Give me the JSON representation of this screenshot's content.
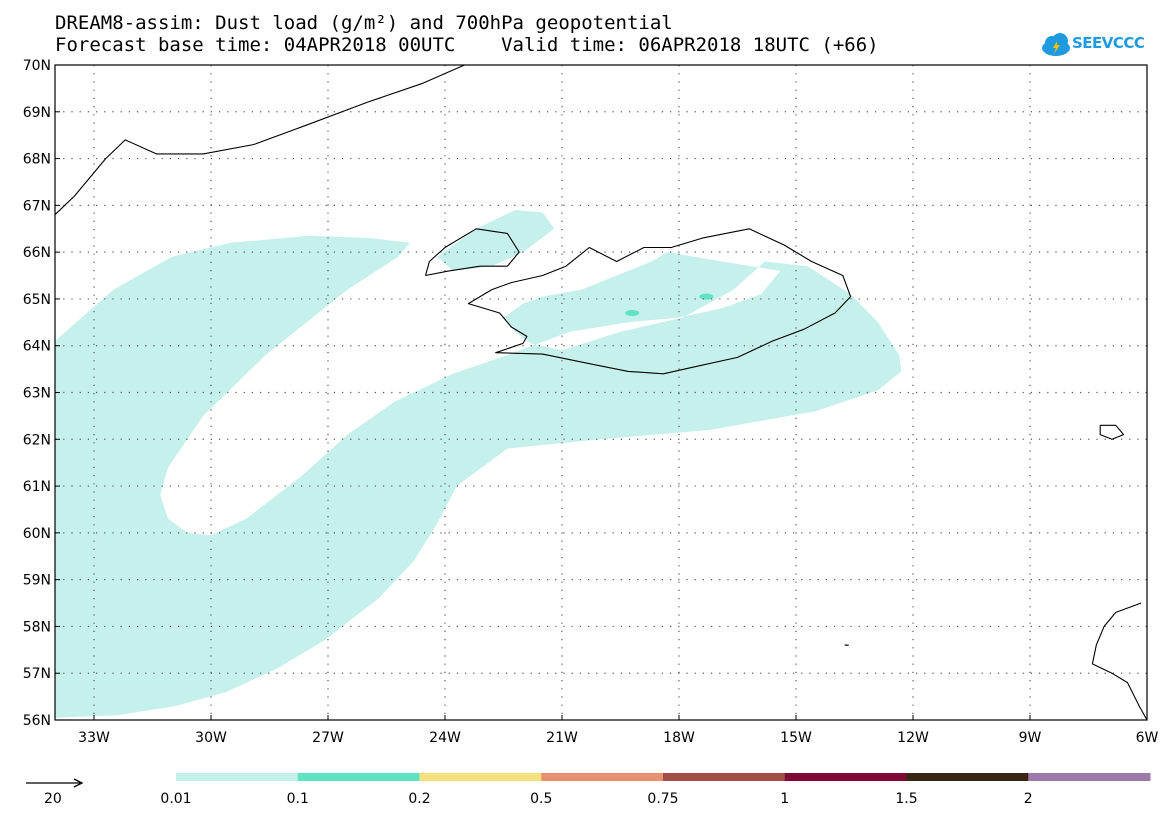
{
  "header": {
    "title_line1": "DREAM8-assim: Dust load (g/m²) and 700hPa geopotential",
    "title_line2": "Forecast base time: 04APR2018 00UTC    Valid time: 06APR2018 18UTC (+66)"
  },
  "logo": {
    "text": "SEEVCCC",
    "color": "#1e9be0"
  },
  "map": {
    "lon_range": [
      -34,
      -6
    ],
    "lat_range": [
      56,
      70
    ],
    "lat_labels": [
      "56N",
      "57N",
      "58N",
      "59N",
      "60N",
      "61N",
      "62N",
      "63N",
      "64N",
      "65N",
      "66N",
      "67N",
      "68N",
      "69N",
      "70N"
    ],
    "lon_labels": [
      {
        "lon": -33,
        "label": "33W"
      },
      {
        "lon": -30,
        "label": "30W"
      },
      {
        "lon": -27,
        "label": "27W"
      },
      {
        "lon": -24,
        "label": "24W"
      },
      {
        "lon": -21,
        "label": "21W"
      },
      {
        "lon": -18,
        "label": "18W"
      },
      {
        "lon": -15,
        "label": "15W"
      },
      {
        "lon": -12,
        "label": "12W"
      },
      {
        "lon": -9,
        "label": "9W"
      },
      {
        "lon": -6,
        "label": "6W"
      }
    ],
    "dust_color": "#c6f0eb",
    "dust_region": [
      [
        -34,
        64.1
      ],
      [
        -32.5,
        65.2
      ],
      [
        -31,
        65.9
      ],
      [
        -29.5,
        66.2
      ],
      [
        -27.5,
        66.35
      ],
      [
        -25.9,
        66.3
      ],
      [
        -24.9,
        66.2
      ],
      [
        -25.2,
        65.9
      ],
      [
        -26.5,
        65.2
      ],
      [
        -28.6,
        63.8
      ],
      [
        -30.2,
        62.5
      ],
      [
        -31.1,
        61.4
      ],
      [
        -31.3,
        60.8
      ],
      [
        -31.1,
        60.3
      ],
      [
        -30.6,
        60.0
      ],
      [
        -30.0,
        59.95
      ],
      [
        -29.1,
        60.3
      ],
      [
        -27.7,
        61.2
      ],
      [
        -26.5,
        62.1
      ],
      [
        -25.3,
        62.8
      ],
      [
        -23.8,
        63.4
      ],
      [
        -22.4,
        63.8
      ],
      [
        -20.8,
        64.3
      ],
      [
        -19.3,
        64.5
      ],
      [
        -18.0,
        64.6
      ],
      [
        -16.9,
        64.8
      ],
      [
        -15.9,
        65.1
      ],
      [
        -15.4,
        65.6
      ],
      [
        -16.9,
        65.8
      ],
      [
        -18.3,
        66.0
      ],
      [
        -18.7,
        65.8
      ],
      [
        -19.6,
        65.5
      ],
      [
        -20.5,
        65.2
      ],
      [
        -21.5,
        65.05
      ],
      [
        -22.0,
        64.9
      ],
      [
        -22.5,
        64.6
      ],
      [
        -22.2,
        64.3
      ],
      [
        -21.8,
        64.05
      ],
      [
        -21.0,
        63.9
      ],
      [
        -19.5,
        64.3
      ],
      [
        -17.9,
        64.6
      ],
      [
        -16.6,
        65.2
      ],
      [
        -15.8,
        65.8
      ],
      [
        -14.7,
        65.7
      ],
      [
        -13.6,
        65.1
      ],
      [
        -12.9,
        64.5
      ],
      [
        -12.35,
        63.8
      ],
      [
        -12.3,
        63.45
      ],
      [
        -12.9,
        63.05
      ],
      [
        -14.5,
        62.6
      ],
      [
        -17.2,
        62.2
      ],
      [
        -20.0,
        62.0
      ],
      [
        -22.4,
        61.8
      ],
      [
        -23.7,
        61.0
      ],
      [
        -24.2,
        60.2
      ],
      [
        -24.8,
        59.4
      ],
      [
        -25.7,
        58.6
      ],
      [
        -27.1,
        57.7
      ],
      [
        -28.3,
        57.1
      ],
      [
        -29.6,
        56.6
      ],
      [
        -30.9,
        56.3
      ],
      [
        -32.4,
        56.1
      ],
      [
        -34,
        56.05
      ]
    ],
    "dust_region_nw": [
      [
        -24.2,
        65.9
      ],
      [
        -23.2,
        66.5
      ],
      [
        -22.2,
        66.9
      ],
      [
        -21.5,
        66.85
      ],
      [
        -21.2,
        66.5
      ],
      [
        -22.0,
        66.0
      ],
      [
        -22.8,
        65.7
      ],
      [
        -23.8,
        65.6
      ]
    ],
    "dust_spots": [
      {
        "lon": -17.3,
        "lat": 65.05,
        "color": "#5fe3c0"
      },
      {
        "lon": -19.2,
        "lat": 64.7,
        "color": "#5fe3c0"
      }
    ],
    "coast_iceland": [
      [
        -22.0,
        64.05
      ],
      [
        -22.7,
        63.85
      ],
      [
        -21.5,
        63.82
      ],
      [
        -20.2,
        63.6
      ],
      [
        -19.3,
        63.45
      ],
      [
        -18.4,
        63.4
      ],
      [
        -17.6,
        63.55
      ],
      [
        -16.5,
        63.75
      ],
      [
        -15.6,
        64.1
      ],
      [
        -14.8,
        64.35
      ],
      [
        -14.0,
        64.7
      ],
      [
        -13.6,
        65.05
      ],
      [
        -13.8,
        65.5
      ],
      [
        -14.6,
        65.8
      ],
      [
        -15.3,
        66.15
      ],
      [
        -16.2,
        66.5
      ],
      [
        -17.4,
        66.3
      ],
      [
        -18.2,
        66.1
      ],
      [
        -18.9,
        66.1
      ],
      [
        -19.6,
        65.8
      ],
      [
        -20.3,
        66.1
      ],
      [
        -20.9,
        65.7
      ],
      [
        -21.5,
        65.5
      ],
      [
        -22.3,
        65.35
      ],
      [
        -22.8,
        65.2
      ],
      [
        -23.4,
        64.9
      ],
      [
        -22.6,
        64.7
      ],
      [
        -22.3,
        64.4
      ],
      [
        -21.9,
        64.2
      ],
      [
        -22.0,
        64.05
      ]
    ],
    "coast_westfjords": [
      [
        -24.5,
        65.5
      ],
      [
        -23.9,
        65.6
      ],
      [
        -23.1,
        65.7
      ],
      [
        -22.4,
        65.7
      ],
      [
        -22.1,
        66.0
      ],
      [
        -22.4,
        66.4
      ],
      [
        -23.2,
        66.5
      ],
      [
        -24.0,
        66.1
      ],
      [
        -24.4,
        65.8
      ],
      [
        -24.5,
        65.5
      ]
    ],
    "coast_greenland": [
      [
        -34,
        66.8
      ],
      [
        -33.5,
        67.2
      ],
      [
        -32.7,
        68.0
      ],
      [
        -32.2,
        68.4
      ],
      [
        -31.4,
        68.1
      ],
      [
        -30.2,
        68.1
      ],
      [
        -28.9,
        68.3
      ],
      [
        -27.6,
        68.7
      ],
      [
        -26.0,
        69.2
      ],
      [
        -24.6,
        69.6
      ],
      [
        -23.5,
        70.0
      ]
    ],
    "coast_faroe": [
      [
        -7.2,
        62.3
      ],
      [
        -6.8,
        62.3
      ],
      [
        -6.6,
        62.1
      ],
      [
        -6.9,
        62.0
      ],
      [
        -7.2,
        62.1
      ],
      [
        -7.2,
        62.3
      ]
    ],
    "coast_scotland": [
      [
        -6.15,
        58.5
      ],
      [
        -6.8,
        58.3
      ],
      [
        -7.1,
        58.0
      ],
      [
        -7.3,
        57.6
      ],
      [
        -7.4,
        57.2
      ],
      [
        -6.9,
        57.0
      ],
      [
        -6.5,
        56.8
      ],
      [
        -6.2,
        56.3
      ],
      [
        -6.0,
        56.0
      ]
    ],
    "coast_rockall": [
      {
        "lon": -13.7,
        "lat": 57.6
      }
    ]
  },
  "colorbar": {
    "wind_ref_label": "20",
    "labels": [
      "0.01",
      "0.1",
      "0.2",
      "0.5",
      "0.75",
      "1",
      "1.5",
      "2"
    ],
    "colors": [
      "#c6f0eb",
      "#5fe3c0",
      "#f5e17e",
      "#e89070",
      "#a04e46",
      "#7f0a35",
      "#3a2412",
      "#9e7aaa"
    ]
  }
}
